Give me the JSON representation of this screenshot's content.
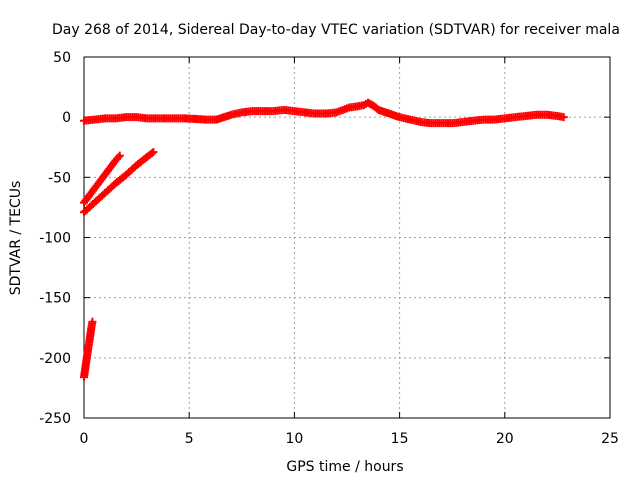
{
  "chart_data": {
    "type": "scatter",
    "title": "Day 268 of 2014, Sidereal Day-to-day VTEC variation (SDTVAR) for receiver mala",
    "xlabel": "GPS time / hours",
    "ylabel": "SDTVAR / TECUs",
    "xlim": [
      0,
      25
    ],
    "ylim": [
      -250,
      50
    ],
    "xticks": [
      0,
      5,
      10,
      15,
      20,
      25
    ],
    "yticks": [
      -250,
      -200,
      -150,
      -100,
      -50,
      0,
      50
    ],
    "grid": true,
    "marker": "plus",
    "color": "#ff0000",
    "series": [
      {
        "name": "main-track",
        "x": [
          0.0,
          0.5,
          1.0,
          1.5,
          2.0,
          2.5,
          3.0,
          3.5,
          4.0,
          4.5,
          4.8,
          5.8,
          6.3,
          7.0,
          7.5,
          8.0,
          8.5,
          9.0,
          9.5,
          10.0,
          10.5,
          11.0,
          11.5,
          12.0,
          12.3,
          12.6,
          13.0,
          13.3,
          13.5,
          13.8,
          14.0,
          14.5,
          15.0,
          15.5,
          16.0,
          16.5,
          17.0,
          17.5,
          18.0,
          18.5,
          19.0,
          19.5,
          20.0,
          20.5,
          21.0,
          21.5,
          22.0,
          22.5,
          22.8
        ],
        "y": [
          -3,
          -2,
          -1,
          -1,
          0,
          0,
          -1,
          -1,
          -1,
          -1,
          -1,
          -2,
          -2,
          2,
          4,
          5,
          5,
          5,
          6,
          5,
          4,
          3,
          3,
          4,
          6,
          8,
          9,
          10,
          12,
          9,
          6,
          3,
          0,
          -2,
          -4,
          -5,
          -5,
          -5,
          -4,
          -3,
          -2,
          -2,
          -1,
          0,
          1,
          2,
          2,
          1,
          0
        ]
      },
      {
        "name": "segment-2",
        "x": [
          0.0,
          0.3,
          0.6,
          0.9,
          1.2,
          1.5,
          1.7
        ],
        "y": [
          -71,
          -64,
          -57,
          -50,
          -43,
          -36,
          -32
        ]
      },
      {
        "name": "segment-3",
        "x": [
          0.0,
          0.5,
          1.0,
          1.5,
          2.0,
          2.5,
          3.0,
          3.3
        ],
        "y": [
          -79,
          -71,
          -63,
          -55,
          -48,
          -40,
          -33,
          -29
        ]
      },
      {
        "name": "segment-4",
        "x": [
          0.0,
          0.05,
          0.1,
          0.15,
          0.2,
          0.25,
          0.3,
          0.35,
          0.4
        ],
        "y": [
          -216,
          -210,
          -204,
          -198,
          -192,
          -187,
          -181,
          -175,
          -170
        ]
      }
    ]
  }
}
